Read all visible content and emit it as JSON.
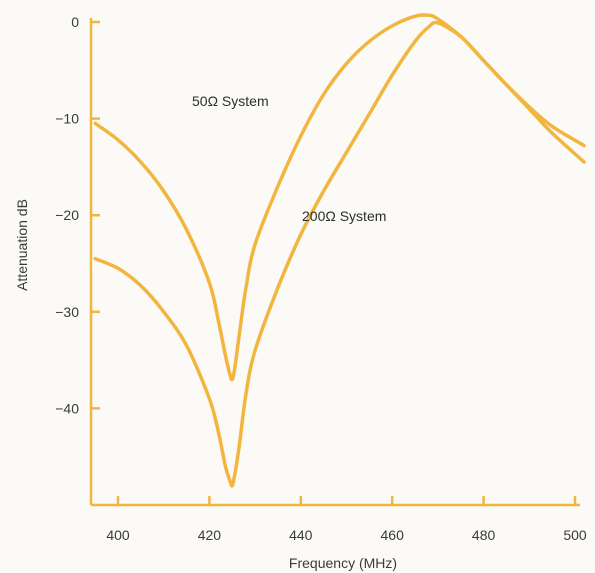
{
  "chart_data": {
    "type": "line",
    "title": "",
    "xlabel": "Frequency (MHz)",
    "ylabel": "Attenuation  dB",
    "xlim": [
      395,
      502
    ],
    "ylim": [
      -50,
      0
    ],
    "x_ticks": [
      400,
      420,
      440,
      460,
      480,
      500
    ],
    "y_ticks": [
      0,
      -10,
      -20,
      -30,
      -40
    ],
    "x_tick_labels": [
      "400",
      "420",
      "440",
      "460",
      "480",
      "500"
    ],
    "y_tick_labels": [
      "0",
      "−10",
      "−20",
      "−30",
      "−40"
    ],
    "grid": false,
    "legend": "none",
    "line_color": "#f2b640",
    "axis_color": "#f2b640",
    "series": [
      {
        "name": "50Ω System",
        "x": [
          395,
          400,
          405,
          410,
          415,
          420,
          422,
          423.5,
          424.5,
          425,
          425.5,
          426.5,
          428,
          430,
          435,
          440,
          445,
          450,
          455,
          460,
          465,
          468,
          470,
          475,
          480,
          485,
          490,
          495,
          502
        ],
        "y": [
          -10.5,
          -12.2,
          -14.5,
          -17.5,
          -21.5,
          -27,
          -31,
          -34.5,
          -36.5,
          -37,
          -36,
          -32.5,
          -27.5,
          -23,
          -17,
          -11.8,
          -7.5,
          -4.3,
          -2,
          -0.4,
          0.6,
          0.7,
          0.3,
          -1.5,
          -4,
          -6.5,
          -8.8,
          -10.8,
          -12.8
        ]
      },
      {
        "name": "200Ω System",
        "x": [
          395,
          400,
          405,
          410,
          415,
          420,
          422,
          423.5,
          424.5,
          425,
          425.5,
          426.5,
          428,
          430,
          435,
          440,
          445,
          450,
          455,
          460,
          465,
          468,
          470,
          475,
          480,
          485,
          490,
          495,
          502
        ],
        "y": [
          -24.5,
          -25.5,
          -27.3,
          -30,
          -33.5,
          -39,
          -42.5,
          -46,
          -47.5,
          -48,
          -47,
          -44,
          -38.5,
          -34,
          -27.5,
          -22,
          -17.5,
          -13.5,
          -9.5,
          -5.5,
          -2,
          -0.5,
          -0.1,
          -1.5,
          -4,
          -6.5,
          -9,
          -11.5,
          -14.5
        ]
      }
    ]
  }
}
